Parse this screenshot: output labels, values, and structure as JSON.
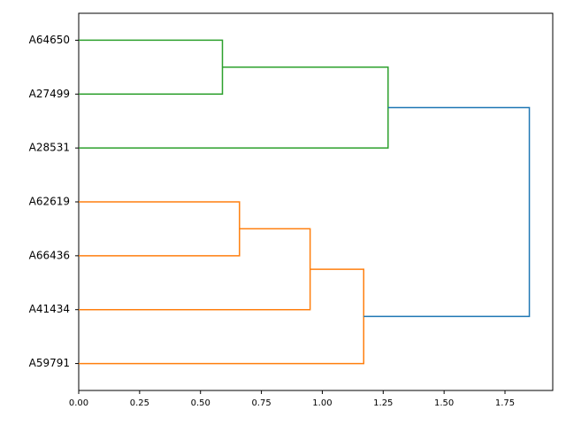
{
  "chart_data": {
    "type": "dendrogram",
    "leaves": [
      "A64650",
      "A27499",
      "A28531",
      "A62619",
      "A66436",
      "A41434",
      "A59791"
    ],
    "merges": [
      {
        "children": [
          0,
          1
        ],
        "height": 0.59,
        "color": "#2ca02c"
      },
      {
        "children": [
          7,
          2
        ],
        "height": 1.27,
        "color": "#2ca02c"
      },
      {
        "children": [
          3,
          4
        ],
        "height": 0.66,
        "color": "#ff7f0e"
      },
      {
        "children": [
          9,
          5
        ],
        "height": 0.95,
        "color": "#ff7f0e"
      },
      {
        "children": [
          10,
          6
        ],
        "height": 1.17,
        "color": "#ff7f0e"
      },
      {
        "children": [
          8,
          11
        ],
        "height": 1.85,
        "color": "#1f77b4"
      }
    ],
    "xlim": [
      0,
      1.946
    ],
    "xticks": [
      {
        "value": 0,
        "label": "0.00"
      },
      {
        "value": 0.25,
        "label": "0.25"
      },
      {
        "value": 0.5,
        "label": "0.50"
      },
      {
        "value": 0.75,
        "label": "0.75"
      },
      {
        "value": 1,
        "label": "1.00"
      },
      {
        "value": 1.25,
        "label": "1.25"
      },
      {
        "value": 1.5,
        "label": "1.50"
      },
      {
        "value": 1.75,
        "label": "1.75"
      }
    ]
  }
}
